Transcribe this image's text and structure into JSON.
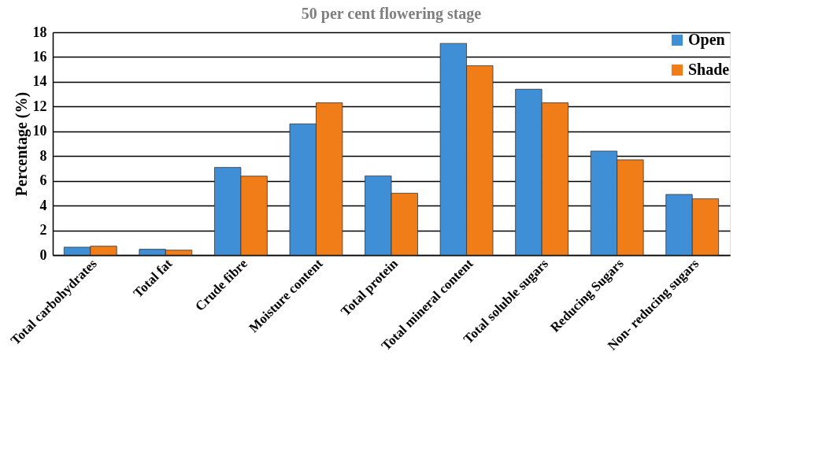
{
  "chart_data": {
    "type": "bar",
    "title": "50 per cent flowering stage",
    "ylabel": "Percentage (%)",
    "categories": [
      "Total carbohydrates",
      "Total fat",
      "Crude fibre",
      "Moisture content",
      "Total protein",
      "Total mineral content",
      "Total soluble sugars",
      "Reducing Sugars",
      "Non- reducing sugars"
    ],
    "series": [
      {
        "name": "Open",
        "color": "#3f8fd6",
        "values": [
          0.64,
          0.47,
          7.08,
          10.6,
          6.4,
          17.1,
          13.4,
          8.4,
          4.9
        ]
      },
      {
        "name": "Shade",
        "color": "#f07d18",
        "values": [
          0.72,
          0.4,
          6.38,
          12.3,
          5.0,
          15.3,
          12.3,
          7.7,
          4.55
        ]
      }
    ],
    "ylim": [
      0,
      18
    ],
    "yticks": [
      0,
      2,
      4,
      6,
      8,
      10,
      12,
      14,
      16,
      18
    ],
    "grid": "y",
    "legend": "top right"
  }
}
